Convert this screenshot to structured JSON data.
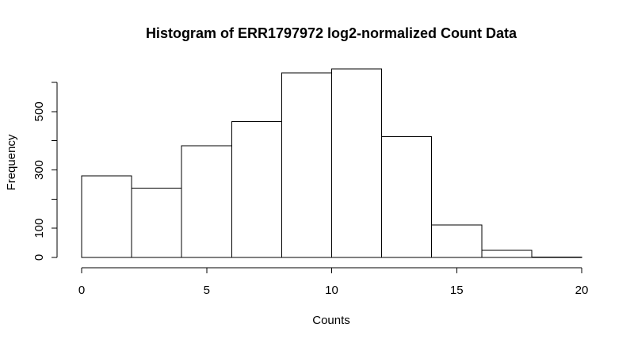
{
  "chart_data": {
    "type": "bar",
    "subtype": "histogram",
    "title": "Histogram of ERR1797972 log2-normalized Count Data",
    "xlabel": "Counts",
    "ylabel": "Frequency",
    "bin_edges": [
      0,
      2,
      4,
      6,
      8,
      10,
      12,
      14,
      16,
      18,
      20
    ],
    "values": [
      279,
      238,
      383,
      465,
      632,
      646,
      414,
      111,
      25,
      1
    ],
    "xlim": [
      0,
      20
    ],
    "ylim": [
      0,
      600
    ],
    "x_ticks": [
      0,
      5,
      10,
      15,
      20
    ],
    "x_tick_labels": [
      "0",
      "5",
      "10",
      "15",
      "20"
    ],
    "y_ticks": [
      0,
      100,
      300,
      500
    ],
    "y_tick_labels": [
      "0",
      "100",
      "300",
      "500"
    ],
    "y_axis_max_tick": 600,
    "grid": false,
    "bar_fill": "#ffffff",
    "bar_stroke": "#000000"
  }
}
